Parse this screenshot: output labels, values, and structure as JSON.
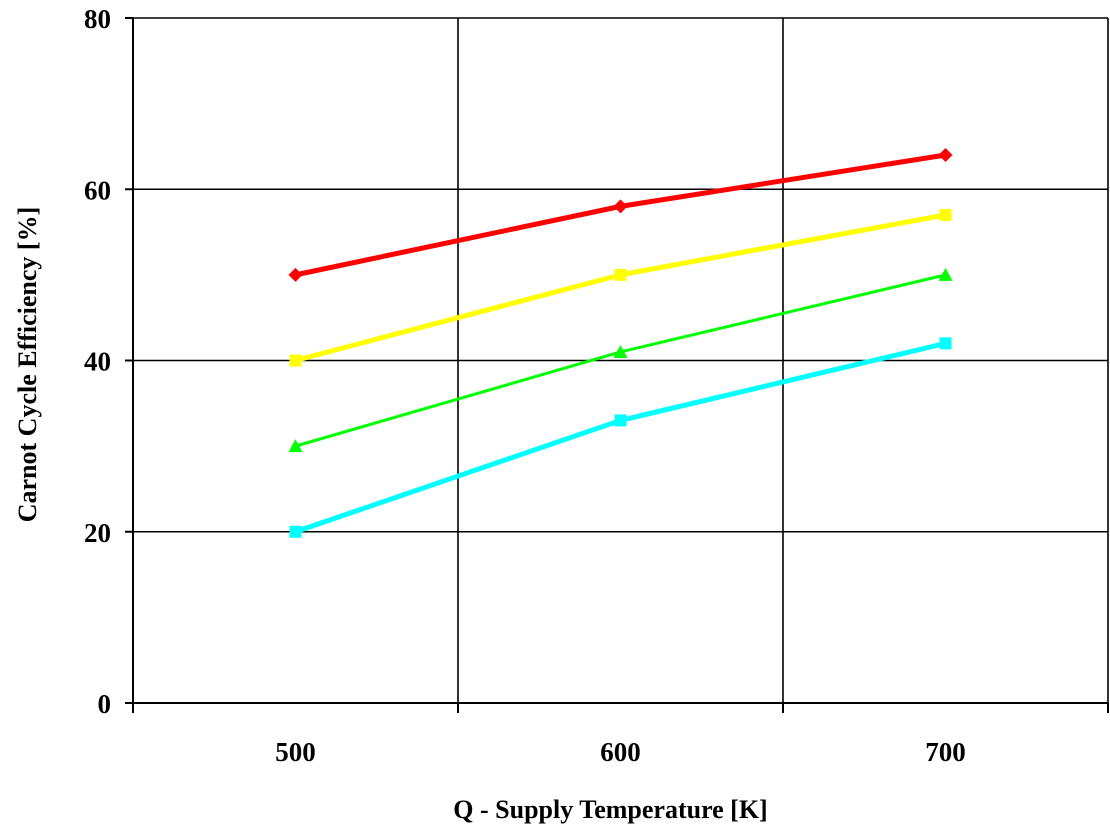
{
  "chart_data": {
    "type": "line",
    "xlabel": "Q - Supply Temperature [K]",
    "ylabel": "Carnot Cycle Efficiency [%]",
    "x_ticks": [
      "500",
      "600",
      "700"
    ],
    "y_ticks": [
      "0",
      "20",
      "40",
      "60",
      "80"
    ],
    "xlim": [
      450,
      750
    ],
    "ylim": [
      0,
      80
    ],
    "grid": true,
    "legend": "none",
    "x": [
      500,
      600,
      700
    ],
    "series": [
      {
        "color": "#ff0000",
        "marker": "diamond",
        "values": [
          50,
          58,
          64
        ]
      },
      {
        "color": "#ffff00",
        "marker": "square",
        "values": [
          40,
          50,
          57
        ]
      },
      {
        "color": "#00ff00",
        "marker": "triangle",
        "values": [
          30,
          41,
          50
        ]
      },
      {
        "color": "#00ffff",
        "marker": "square",
        "values": [
          20,
          33,
          42
        ]
      }
    ]
  }
}
